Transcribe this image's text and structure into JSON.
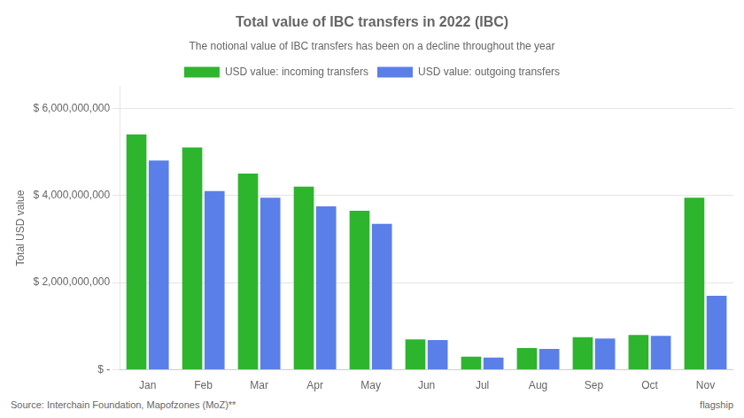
{
  "chart_data": {
    "type": "bar",
    "title": "Total value of IBC transfers in 2022 (IBC)",
    "subtitle": "The notional value of IBC transfers has been on a decline throughout the year",
    "source": "Source: Interchain Foundation, Mapofzones (MoZ)**",
    "annotations": [
      "flagship"
    ],
    "categories": [
      "Jan",
      "Feb",
      "Mar",
      "Apr",
      "May",
      "Jun",
      "Jul",
      "Aug",
      "Sep",
      "Oct",
      "Nov"
    ],
    "series": [
      {
        "name": "USD value: incoming transfers",
        "color": "#2db52d",
        "values": [
          5400000000,
          5100000000,
          4500000000,
          4200000000,
          3650000000,
          700000000,
          300000000,
          500000000,
          750000000,
          800000000,
          3950000000
        ]
      },
      {
        "name": "USD value: outgoing transfers",
        "color": "#5b7fe8",
        "values": [
          4800000000,
          4100000000,
          3950000000,
          3750000000,
          3350000000,
          680000000,
          280000000,
          480000000,
          720000000,
          780000000,
          1700000000
        ]
      }
    ],
    "ylabel": "Total USD value",
    "ylim": [
      0,
      6500000000
    ],
    "yticks": [
      {
        "value": 0,
        "label": "$ -"
      },
      {
        "value": 2000000000,
        "label": "$ 2,000,000,000"
      },
      {
        "value": 4000000000,
        "label": "$ 4,000,000,000"
      },
      {
        "value": 6000000000,
        "label": "$ 6,000,000,000"
      }
    ],
    "grid": true,
    "legend": "top"
  }
}
